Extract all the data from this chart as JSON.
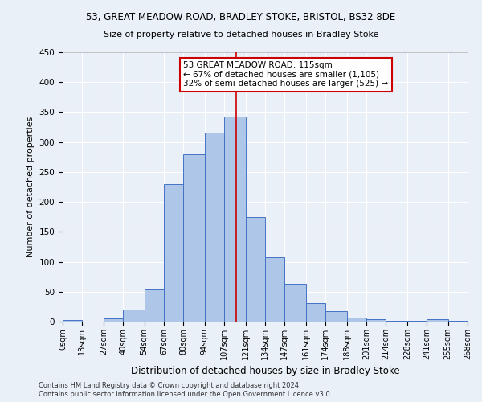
{
  "title1": "53, GREAT MEADOW ROAD, BRADLEY STOKE, BRISTOL, BS32 8DE",
  "title2": "Size of property relative to detached houses in Bradley Stoke",
  "xlabel": "Distribution of detached houses by size in Bradley Stoke",
  "ylabel": "Number of detached properties",
  "footnote1": "Contains HM Land Registry data © Crown copyright and database right 2024.",
  "footnote2": "Contains public sector information licensed under the Open Government Licence v3.0.",
  "annotation_line1": "53 GREAT MEADOW ROAD: 115sqm",
  "annotation_line2": "← 67% of detached houses are smaller (1,105)",
  "annotation_line3": "32% of semi-detached houses are larger (525) →",
  "property_size": 115,
  "bar_edges": [
    0,
    13,
    27,
    40,
    54,
    67,
    80,
    94,
    107,
    121,
    134,
    147,
    161,
    174,
    188,
    201,
    214,
    228,
    241,
    255,
    268
  ],
  "bar_heights": [
    3,
    0,
    6,
    20,
    54,
    230,
    280,
    315,
    343,
    175,
    108,
    63,
    31,
    17,
    7,
    4,
    2,
    2,
    4,
    2
  ],
  "bar_color": "#aec6e8",
  "bar_edge_color": "#4472c4",
  "line_color": "#cc0000",
  "bg_color": "#eaf0f8",
  "grid_color": "#ffffff",
  "annotation_box_color": "#cc0000",
  "ylim": [
    0,
    450
  ],
  "yticks": [
    0,
    50,
    100,
    150,
    200,
    250,
    300,
    350,
    400,
    450
  ]
}
